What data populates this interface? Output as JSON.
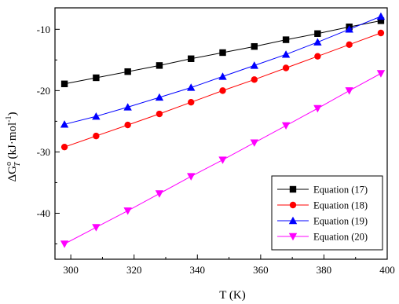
{
  "chart_data": {
    "type": "line",
    "xlabel": "T (K)",
    "ylabel": {
      "base": "ΔG",
      "sup": "o",
      "sub": "T",
      "unit_open": "(kJ·mol",
      "unit_sup": "-1",
      "unit_close": ")"
    },
    "xlim": [
      295,
      400
    ],
    "ylim": [
      -47.5,
      -6.5
    ],
    "x_ticks": [
      300,
      320,
      340,
      360,
      380,
      400
    ],
    "y_ticks": [
      -10,
      -20,
      -30,
      -40
    ],
    "grid": false,
    "legend_position": "bottom-right",
    "x": [
      298,
      308,
      318,
      328,
      338,
      348,
      358,
      368,
      378,
      388,
      398
    ],
    "series": [
      {
        "name": "Equation (17)",
        "color": "#000000",
        "marker": "square",
        "values": [
          -18.9,
          -17.9,
          -16.9,
          -15.9,
          -14.8,
          -13.8,
          -12.8,
          -11.7,
          -10.7,
          -9.6,
          -8.6
        ]
      },
      {
        "name": "Equation (18)",
        "color": "#ff0000",
        "marker": "circle",
        "values": [
          -29.2,
          -27.4,
          -25.6,
          -23.8,
          -21.9,
          -20.0,
          -18.2,
          -16.3,
          -14.4,
          -12.5,
          -10.6
        ]
      },
      {
        "name": "Equation (19)",
        "color": "#0000ff",
        "marker": "triangle-up",
        "values": [
          -25.5,
          -24.2,
          -22.7,
          -21.1,
          -19.5,
          -17.7,
          -15.9,
          -14.1,
          -12.1,
          -10.0,
          -7.9
        ]
      },
      {
        "name": "Equation (20)",
        "color": "#ff00ff",
        "marker": "triangle-down",
        "values": [
          -45.0,
          -42.3,
          -39.6,
          -36.8,
          -34.0,
          -31.3,
          -28.5,
          -25.7,
          -22.9,
          -20.0,
          -17.2
        ]
      }
    ]
  }
}
